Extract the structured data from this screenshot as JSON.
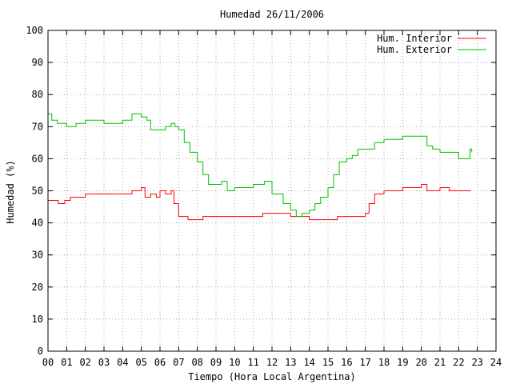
{
  "chart_data": {
    "type": "line",
    "title": "Humedad 26/11/2006",
    "xlabel": "Tiempo (Hora Local Argentina)",
    "ylabel": "Humedad (%)",
    "xlim": [
      0,
      24
    ],
    "ylim": [
      0,
      100
    ],
    "xticks": [
      "00",
      "01",
      "02",
      "03",
      "04",
      "05",
      "06",
      "07",
      "08",
      "09",
      "10",
      "11",
      "12",
      "13",
      "14",
      "15",
      "16",
      "17",
      "18",
      "19",
      "20",
      "21",
      "22",
      "23",
      "24"
    ],
    "yticks": [
      0,
      10,
      20,
      30,
      40,
      50,
      60,
      70,
      80,
      90,
      100
    ],
    "grid": true,
    "legend_position": "top-right",
    "series": [
      {
        "name": "Hum. Interior",
        "color": "#ff0000",
        "x": [
          0,
          0.3,
          0.55,
          0.9,
          1.2,
          1.5,
          2.0,
          2.5,
          3.0,
          3.5,
          4.0,
          4.5,
          5.0,
          5.2,
          5.5,
          5.8,
          6.0,
          6.3,
          6.6,
          6.75,
          7.0,
          7.5,
          8.0,
          8.3,
          8.6,
          9.0,
          10.0,
          11.0,
          11.5,
          12.0,
          12.5,
          13.0,
          13.5,
          14.0,
          14.5,
          15.0,
          15.5,
          16.0,
          16.5,
          17.0,
          17.2,
          17.5,
          18.0,
          18.5,
          19.0,
          19.5,
          20.0,
          20.3,
          20.6,
          21.0,
          21.5,
          22.0,
          22.3,
          22.65
        ],
        "y": [
          47,
          47,
          46,
          47,
          48,
          48,
          49,
          49,
          49,
          49,
          49,
          50,
          51,
          48,
          49,
          48,
          50,
          49,
          50,
          46,
          42,
          41,
          41,
          42,
          42,
          42,
          42,
          42,
          43,
          43,
          43,
          42,
          42,
          41,
          41,
          41,
          42,
          42,
          42,
          43,
          46,
          49,
          50,
          50,
          51,
          51,
          52,
          50,
          50,
          51,
          50,
          50,
          50,
          50
        ]
      },
      {
        "name": "Hum. Exterior",
        "color": "#00c000",
        "x": [
          0,
          0.2,
          0.5,
          1.0,
          1.5,
          2.0,
          2.5,
          3.0,
          3.5,
          4.0,
          4.5,
          5.0,
          5.3,
          5.5,
          5.8,
          6.0,
          6.3,
          6.6,
          6.8,
          7.0,
          7.3,
          7.6,
          8.0,
          8.3,
          8.6,
          9.0,
          9.3,
          9.6,
          10.0,
          10.5,
          11.0,
          11.3,
          11.6,
          12.0,
          12.3,
          12.6,
          13.0,
          13.3,
          13.6,
          14.0,
          14.3,
          14.6,
          15.0,
          15.3,
          15.6,
          16.0,
          16.3,
          16.6,
          17.0,
          17.5,
          18.0,
          18.5,
          19.0,
          19.5,
          20.0,
          20.3,
          20.6,
          21.0,
          21.5,
          22.0,
          22.3,
          22.6,
          22.7
        ],
        "y": [
          74,
          72,
          71,
          70,
          71,
          72,
          72,
          71,
          71,
          72,
          74,
          73,
          72,
          69,
          69,
          69,
          70,
          71,
          70,
          69,
          65,
          62,
          59,
          55,
          52,
          52,
          53,
          50,
          51,
          51,
          52,
          52,
          53,
          49,
          49,
          46,
          44,
          42,
          43,
          44,
          46,
          48,
          51,
          55,
          59,
          60,
          61,
          63,
          63,
          65,
          66,
          66,
          67,
          67,
          67,
          64,
          63,
          62,
          62,
          60,
          60,
          63,
          62
        ]
      }
    ]
  }
}
